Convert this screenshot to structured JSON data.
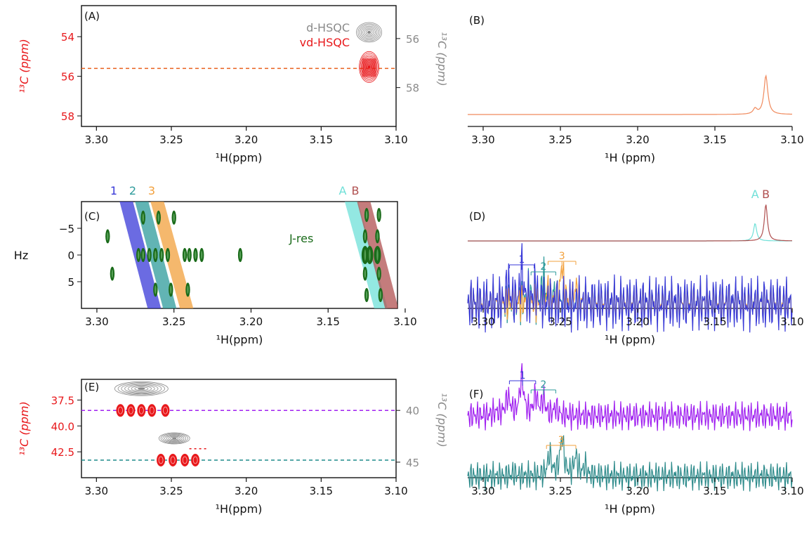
{
  "figure": {
    "colors": {
      "red": "#e8191c",
      "gray": "#8a8a8a",
      "green": "#1a6b1a",
      "orange": "#f08a5d",
      "purple": "#a020f0",
      "teal": "#2e8b8b",
      "s1": "#3a3ad8",
      "s2": "#2e9b9b",
      "s3": "#f2a03c",
      "sA": "#6fe0d8",
      "sB": "#b05050",
      "dash_orange": "#e8601c",
      "dash_purple": "#a020f0",
      "dash_teal": "#1f8b8b"
    },
    "x_tick_labels": [
      "3.30",
      "3.25",
      "3.20",
      "3.15",
      "3.10"
    ],
    "panels": [
      {
        "id": "A",
        "label": "(A)",
        "xlabel": "¹H(ppm)",
        "ylabel_left": "¹³C (ppm)",
        "ylabel_right": "¹³C (ppm)",
        "yticks_left": [
          "54",
          "56",
          "58"
        ],
        "yticks_right": [
          "56",
          "58"
        ],
        "legend": [
          {
            "text": "d-HSQC",
            "color": "gray"
          },
          {
            "text": "vd-HSQC",
            "color": "red"
          }
        ]
      },
      {
        "id": "B",
        "label": "(B)",
        "xlabel": "¹H (ppm)"
      },
      {
        "id": "C",
        "label": "(C)",
        "xlabel": "¹H(ppm)",
        "ylabel_left": "Hz",
        "yticks_left": [
          "−5",
          "0",
          "5"
        ],
        "annotation": "J-res",
        "band_labels": [
          "1",
          "2",
          "3",
          "A",
          "B"
        ]
      },
      {
        "id": "D",
        "label": "(D)",
        "xlabel": "¹H (ppm)",
        "peak_labels": [
          "A",
          "B"
        ],
        "multiplet_labels": [
          "1",
          "2",
          "3"
        ]
      },
      {
        "id": "E",
        "label": "(E)",
        "xlabel": "¹H(ppm)",
        "ylabel_left": "¹³C (ppm)",
        "ylabel_right": "¹³C (ppm)",
        "yticks_left": [
          "37.5",
          "40.0",
          "42.5"
        ],
        "yticks_right": [
          "40",
          "45"
        ]
      },
      {
        "id": "F",
        "label": "(F)",
        "xlabel": "¹H (ppm)",
        "multiplet_labels_top": [
          "1",
          "2"
        ],
        "multiplet_labels_bottom": [
          "3"
        ]
      }
    ]
  },
  "chart_data": [
    {
      "panel": "A",
      "type": "scatter",
      "xlim": [
        3.31,
        3.1
      ],
      "ylim_left": [
        58.0,
        53.0
      ],
      "ylim_right": [
        59.3,
        55.0
      ],
      "hline_y": 55.6,
      "peaks": [
        {
          "series": "d-HSQC",
          "x": 3.118,
          "y_right": 55.7,
          "color": "gray"
        },
        {
          "series": "vd-HSQC",
          "x": 3.118,
          "y_left": 55.6,
          "color": "red"
        }
      ]
    },
    {
      "panel": "B",
      "type": "line",
      "xlim": [
        3.31,
        3.1
      ],
      "series": [
        {
          "color": "orange",
          "baseline": 0.0,
          "peaks": [
            {
              "x": 3.117,
              "h": 1.0,
              "w": 0.0015
            },
            {
              "x": 3.124,
              "h": 0.14,
              "w": 0.0015
            }
          ]
        }
      ]
    },
    {
      "panel": "C",
      "type": "scatter",
      "xlim": [
        3.31,
        3.105
      ],
      "ylim": [
        -10,
        10
      ],
      "bands": [
        {
          "label": "1",
          "x_top": 3.282,
          "x_bottom": 3.262,
          "color": "s1"
        },
        {
          "label": "2",
          "x_top": 3.272,
          "x_bottom": 3.252,
          "color": "s2"
        },
        {
          "label": "3",
          "x_top": 3.262,
          "x_bottom": 3.241,
          "color": "s3"
        },
        {
          "label": "A",
          "x_top": 3.136,
          "x_bottom": 3.115,
          "color": "sA"
        },
        {
          "label": "B",
          "x_top": 3.128,
          "x_bottom": 3.108,
          "color": "sB"
        }
      ],
      "peaks": [
        {
          "x": 3.293,
          "y": -3.5
        },
        {
          "x": 3.29,
          "y": 3.5
        },
        {
          "x": 3.273,
          "y": 0.0
        },
        {
          "x": 3.27,
          "y": 0.0
        },
        {
          "x": 3.266,
          "y": 0.0
        },
        {
          "x": 3.262,
          "y": 0.0
        },
        {
          "x": 3.262,
          "y": 0.0
        },
        {
          "x": 3.258,
          "y": 0.0
        },
        {
          "x": 3.254,
          "y": 0.0
        },
        {
          "x": 3.243,
          "y": 0.0
        },
        {
          "x": 3.24,
          "y": 0.0
        },
        {
          "x": 3.236,
          "y": 0.0
        },
        {
          "x": 3.232,
          "y": 0.0
        },
        {
          "x": 3.207,
          "y": 0.0
        },
        {
          "x": 3.27,
          "y": -7.0
        },
        {
          "x": 3.26,
          "y": -7.0
        },
        {
          "x": 3.25,
          "y": -7.0
        },
        {
          "x": 3.262,
          "y": 6.5
        },
        {
          "x": 3.252,
          "y": 6.5
        },
        {
          "x": 3.241,
          "y": 6.5
        },
        {
          "x": 3.125,
          "y": -7.5
        },
        {
          "x": 3.117,
          "y": -7.5
        },
        {
          "x": 3.126,
          "y": -3.5
        },
        {
          "x": 3.118,
          "y": -3.5
        },
        {
          "x": 3.126,
          "y": 0.0
        },
        {
          "x": 3.123,
          "y": 0.0
        },
        {
          "x": 3.118,
          "y": 0.0
        },
        {
          "x": 3.126,
          "y": 3.5
        },
        {
          "x": 3.117,
          "y": 3.5
        },
        {
          "x": 3.125,
          "y": 7.5
        },
        {
          "x": 3.116,
          "y": 7.5
        }
      ]
    },
    {
      "panel": "D",
      "type": "line",
      "xlim": [
        3.31,
        3.1
      ],
      "series": [
        {
          "trace": "top",
          "color": "sA",
          "peaks": [
            {
              "x": 3.124,
              "h": 0.48,
              "w": 0.0012
            }
          ]
        },
        {
          "trace": "top",
          "color": "sB",
          "peaks": [
            {
              "x": 3.117,
              "h": 1.0,
              "w": 0.0012
            }
          ]
        },
        {
          "trace": "bottom",
          "color": "s1",
          "peaks": [
            {
              "x": 3.284,
              "h": 0.5,
              "w": 0.0012
            },
            {
              "x": 3.275,
              "h": 0.85,
              "w": 0.0012
            },
            {
              "x": 3.266,
              "h": 0.4,
              "w": 0.0012
            }
          ]
        },
        {
          "trace": "bottom",
          "color": "s2",
          "peaks": [
            {
              "x": 3.27,
              "h": 0.3,
              "w": 0.0012
            },
            {
              "x": 3.261,
              "h": 0.6,
              "w": 0.0012
            },
            {
              "x": 3.254,
              "h": 0.25,
              "w": 0.0012
            }
          ]
        },
        {
          "trace": "bottom",
          "color": "s3",
          "peaks": [
            {
              "x": 3.258,
              "h": 0.35,
              "w": 0.0012
            },
            {
              "x": 3.249,
              "h": 0.9,
              "w": 0.0012
            },
            {
              "x": 3.24,
              "h": 0.35,
              "w": 0.0012
            }
          ]
        }
      ]
    },
    {
      "panel": "E",
      "type": "scatter",
      "xlim": [
        3.31,
        3.1
      ],
      "ylim_left": [
        35.5,
        45.0
      ],
      "ylim_right": [
        37.0,
        46.5
      ],
      "hlines_y": [
        38.5,
        43.3
      ],
      "peaks": [
        {
          "series": "d-HSQC",
          "x": 3.27,
          "y_right": 37.9,
          "color": "gray"
        },
        {
          "series": "d-HSQC",
          "x": 3.248,
          "y_right": 42.7,
          "color": "gray"
        },
        {
          "series": "vd-HSQC",
          "x": 3.284,
          "y_left": 38.5,
          "color": "red"
        },
        {
          "series": "vd-HSQC",
          "x": 3.277,
          "y_left": 38.5,
          "color": "red"
        },
        {
          "series": "vd-HSQC",
          "x": 3.27,
          "y_left": 38.5,
          "color": "red"
        },
        {
          "series": "vd-HSQC",
          "x": 3.263,
          "y_left": 38.5,
          "color": "red"
        },
        {
          "series": "vd-HSQC",
          "x": 3.254,
          "y_left": 38.5,
          "color": "red"
        },
        {
          "series": "vd-HSQC",
          "x": 3.257,
          "y_left": 43.3,
          "color": "red"
        },
        {
          "series": "vd-HSQC",
          "x": 3.249,
          "y_left": 43.3,
          "color": "red"
        },
        {
          "series": "vd-HSQC",
          "x": 3.241,
          "y_left": 43.3,
          "color": "red"
        },
        {
          "series": "vd-HSQC",
          "x": 3.234,
          "y_left": 43.3,
          "color": "red"
        }
      ]
    },
    {
      "panel": "F",
      "type": "line",
      "xlim": [
        3.31,
        3.1
      ],
      "series": [
        {
          "trace": "top",
          "color": "purple",
          "peaks": [
            {
              "x": 3.284,
              "h": 0.45,
              "w": 0.002
            },
            {
              "x": 3.275,
              "h": 1.0,
              "w": 0.0015
            },
            {
              "x": 3.266,
              "h": 0.5,
              "w": 0.0015
            },
            {
              "x": 3.261,
              "h": 0.4,
              "w": 0.0015
            },
            {
              "x": 3.253,
              "h": 0.2,
              "w": 0.0015
            },
            {
              "x": 3.292,
              "h": 0.08,
              "w": 0.002
            }
          ]
        },
        {
          "trace": "bottom",
          "color": "teal",
          "peaks": [
            {
              "x": 3.257,
              "h": 0.55,
              "w": 0.0015
            },
            {
              "x": 3.249,
              "h": 1.0,
              "w": 0.0015
            },
            {
              "x": 3.24,
              "h": 0.5,
              "w": 0.0015
            },
            {
              "x": 3.234,
              "h": 0.25,
              "w": 0.0012
            },
            {
              "x": 3.28,
              "h": 0.07,
              "w": 0.002
            }
          ]
        }
      ]
    }
  ]
}
